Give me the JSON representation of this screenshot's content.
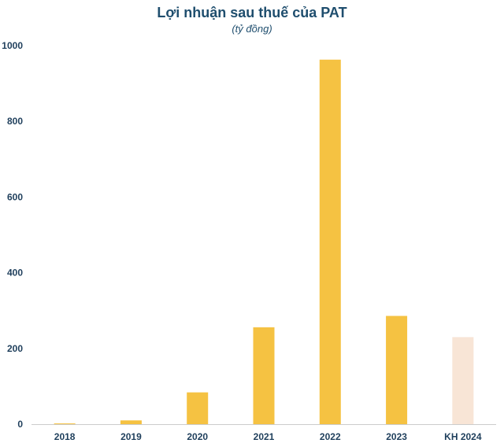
{
  "chart_data": {
    "type": "bar",
    "title": "Lợi nhuận sau thuế của PAT",
    "subtitle": "(tỷ đồng)",
    "xlabel": "",
    "ylabel": "",
    "categories": [
      "2018",
      "2019",
      "2020",
      "2021",
      "2022",
      "2023",
      "KH 2024"
    ],
    "values": [
      2,
      10,
      84,
      256,
      963,
      286,
      230
    ],
    "ylim": [
      0,
      1000
    ],
    "yticks": [
      0,
      200,
      400,
      600,
      800,
      1000
    ],
    "grid": false,
    "legend": "none",
    "colors": {
      "actual": "#f5c242",
      "plan": "#f8e5d6",
      "axis": "#cccccc",
      "text": "#1f3f5c"
    },
    "plan_categories": [
      "KH 2024"
    ]
  }
}
